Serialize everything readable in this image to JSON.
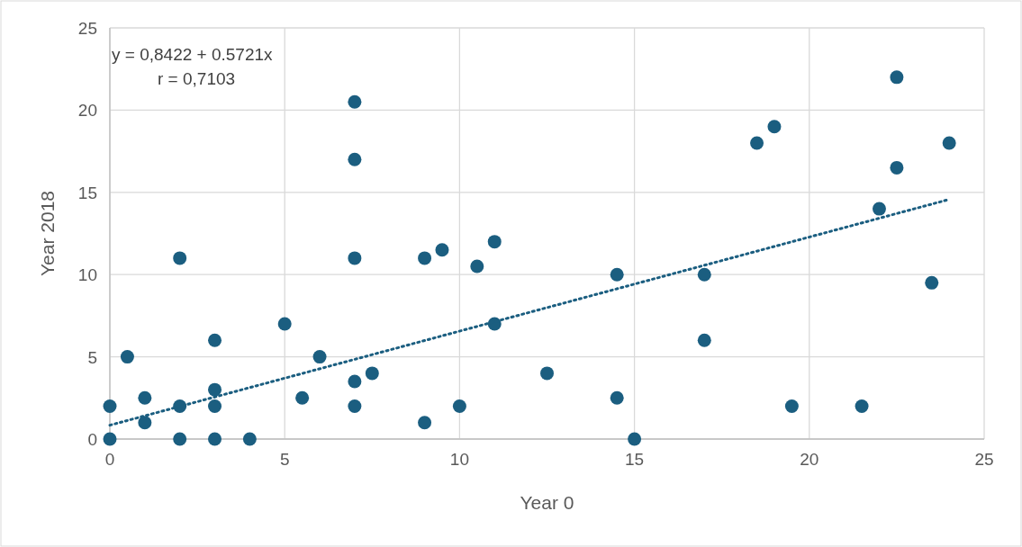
{
  "chart_data": {
    "type": "scatter",
    "xlabel": "Year 0",
    "ylabel": "Year 2018",
    "xlim": [
      0,
      25
    ],
    "ylim": [
      0,
      25
    ],
    "xticks": [
      0,
      5,
      10,
      15,
      20,
      25
    ],
    "yticks": [
      0,
      5,
      10,
      15,
      20,
      25
    ],
    "grid": true,
    "marker": "circle",
    "annotations": [
      "y = 0,8422 + 0.5721x",
      "r = 0,7103"
    ],
    "series": [
      {
        "color": "#1b5e80",
        "x": [
          0,
          0,
          0.5,
          1,
          1,
          2,
          2,
          2,
          3,
          3,
          3,
          3,
          4,
          5,
          5.5,
          6,
          7,
          7,
          7,
          7,
          7,
          7.5,
          9,
          9,
          9.5,
          10,
          10.5,
          11,
          11,
          12.5,
          14.5,
          14.5,
          15,
          17,
          17,
          18.5,
          19,
          19.5,
          21.5,
          22,
          22.5,
          22.5,
          23.5,
          24
        ],
        "values": [
          2,
          0,
          5,
          2.5,
          1,
          11,
          2,
          0,
          6,
          3,
          2,
          0,
          0,
          7,
          2.5,
          5,
          20.5,
          17,
          11,
          3.5,
          2,
          4,
          11,
          1,
          11.5,
          2,
          10.5,
          12,
          7,
          4,
          10,
          2.5,
          0,
          10,
          6,
          18,
          19,
          2,
          2,
          14,
          22,
          16.5,
          9.5,
          18
        ]
      },
      {
        "type": "line",
        "color": "#1b5e80",
        "line_style": "dotted",
        "marker": "none",
        "x": [
          0,
          24
        ],
        "values": [
          0.84,
          14.57
        ]
      }
    ]
  }
}
